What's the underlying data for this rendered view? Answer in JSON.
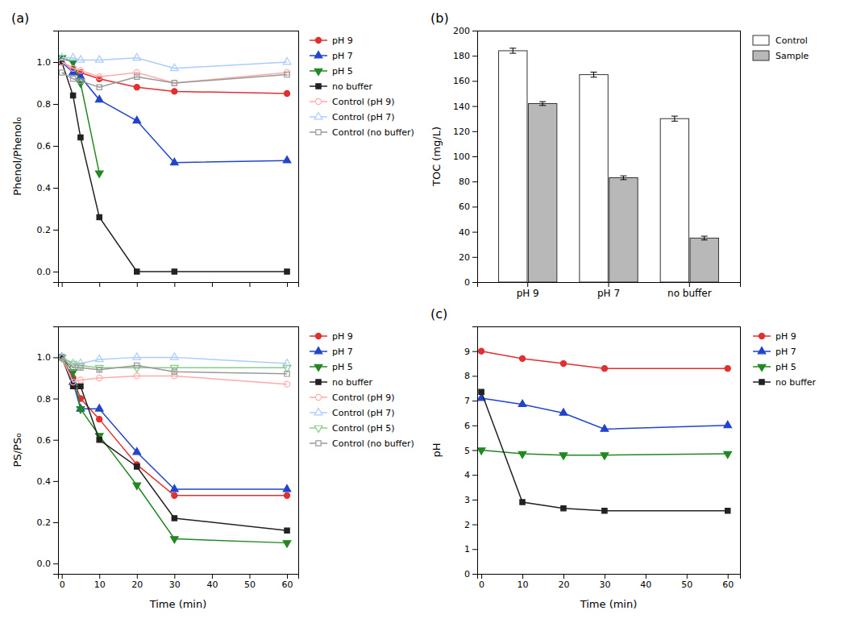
{
  "chart_data": [
    {
      "type": "line",
      "ylabel": "Phenol/Phenol₀",
      "annotations": [
        "(a)"
      ],
      "x": [
        0,
        3,
        5,
        10,
        20,
        30,
        60
      ],
      "xlim": [
        -1,
        63
      ],
      "xticks": [
        0,
        10,
        20,
        30,
        40,
        50,
        60
      ],
      "ylim": [
        -0.05,
        1.15
      ],
      "yticks": [
        {
          "value": 0,
          "label": "0.0"
        },
        0.2,
        0.4,
        0.6,
        0.8,
        {
          "value": 1.0,
          "label": "1.0"
        }
      ],
      "tick_labels": "y",
      "grid": false,
      "legend": "right",
      "series": [
        {
          "name": "pH 9",
          "color": "#e03030",
          "marker": "circle",
          "values": [
            1.0,
            0.97,
            0.95,
            0.92,
            0.88,
            0.86,
            0.85
          ]
        },
        {
          "name": "pH 7",
          "color": "#2244cc",
          "marker": "triangle-up",
          "values": [
            1.0,
            0.95,
            0.93,
            0.82,
            0.72,
            0.52,
            0.53
          ]
        },
        {
          "name": "pH 5",
          "color": "#228822",
          "marker": "triangle-down",
          "values": [
            1.02,
            1.0,
            0.9,
            0.47,
            null,
            null,
            null
          ]
        },
        {
          "name": "no buffer",
          "color": "#222222",
          "marker": "square",
          "values": [
            1.0,
            0.84,
            0.64,
            0.26,
            0.0,
            0.0,
            0.0
          ]
        },
        {
          "name": "Control (pH 9)",
          "color": "#ffaaaa",
          "marker": "circle-open",
          "values": [
            1.0,
            0.97,
            0.96,
            0.93,
            0.95,
            0.9,
            0.95
          ]
        },
        {
          "name": "Control (pH 7)",
          "color": "#aaccff",
          "marker": "triangle-up-open",
          "values": [
            1.02,
            1.02,
            1.01,
            1.01,
            1.02,
            0.97,
            1.0
          ]
        },
        {
          "name": "Control (no buffer)",
          "color": "#999999",
          "marker": "square-open",
          "values": [
            0.95,
            0.92,
            0.91,
            0.88,
            0.93,
            0.9,
            0.94
          ]
        }
      ]
    },
    {
      "type": "line",
      "xlabel": "Time (min)",
      "ylabel": "PS/PS₀",
      "x": [
        0,
        3,
        5,
        10,
        20,
        30,
        60
      ],
      "xlim": [
        -1,
        63
      ],
      "xticks": [
        0,
        10,
        20,
        30,
        40,
        50,
        60
      ],
      "ylim": [
        -0.05,
        1.15
      ],
      "yticks": [
        {
          "value": 0,
          "label": "0.0"
        },
        0.2,
        0.4,
        0.6,
        0.8,
        {
          "value": 1.0,
          "label": "1.0"
        }
      ],
      "grid": false,
      "legend": "right",
      "series": [
        {
          "name": "pH 9",
          "color": "#e03030",
          "marker": "circle",
          "values": [
            1.0,
            0.9,
            0.8,
            0.7,
            0.48,
            0.33,
            0.33
          ]
        },
        {
          "name": "pH 7",
          "color": "#2244cc",
          "marker": "triangle-up",
          "values": [
            1.0,
            0.88,
            0.75,
            0.75,
            0.54,
            0.36,
            0.36
          ]
        },
        {
          "name": "pH 5",
          "color": "#228822",
          "marker": "triangle-down",
          "values": [
            1.0,
            0.93,
            0.75,
            0.62,
            0.38,
            0.12,
            0.1
          ]
        },
        {
          "name": "no buffer",
          "color": "#222222",
          "marker": "square",
          "values": [
            1.0,
            0.86,
            0.86,
            0.6,
            0.47,
            0.22,
            0.16
          ]
        },
        {
          "name": "Control (pH 9)",
          "color": "#ffaaaa",
          "marker": "circle-open",
          "values": [
            1.0,
            0.88,
            0.89,
            0.9,
            0.91,
            0.91,
            0.87
          ]
        },
        {
          "name": "Control (pH 7)",
          "color": "#aaccff",
          "marker": "triangle-up-open",
          "values": [
            1.0,
            0.97,
            0.97,
            0.99,
            1.0,
            1.0,
            0.97
          ]
        },
        {
          "name": "Control (pH 5)",
          "color": "#88cc88",
          "marker": "triangle-down-open",
          "values": [
            1.0,
            0.97,
            0.96,
            0.95,
            0.95,
            0.95,
            0.95
          ]
        },
        {
          "name": "Control (no buffer)",
          "color": "#999999",
          "marker": "square-open",
          "values": [
            1.0,
            0.95,
            0.95,
            0.94,
            0.96,
            0.93,
            0.92
          ]
        }
      ]
    },
    {
      "type": "bar",
      "ylabel": "TOC (mg/L)",
      "annotations": [
        "(b)"
      ],
      "categories": [
        "pH 9",
        "pH 7",
        "no buffer"
      ],
      "ylim": [
        0,
        200
      ],
      "yticks": [
        0,
        20,
        40,
        60,
        80,
        100,
        120,
        140,
        160,
        180,
        200
      ],
      "grid": false,
      "legend": "right",
      "series": [
        {
          "name": "Control",
          "color": "#ffffff",
          "values": [
            184,
            165,
            130
          ],
          "errors": [
            2,
            2,
            2
          ]
        },
        {
          "name": "Sample",
          "color": "#b8b8b8",
          "values": [
            142,
            83,
            35
          ],
          "errors": [
            1.5,
            1.5,
            1.5
          ]
        }
      ]
    },
    {
      "type": "line",
      "xlabel": "Time (min)",
      "ylabel": "pH",
      "annotations": [
        "(c)"
      ],
      "x": [
        0,
        10,
        20,
        30,
        60
      ],
      "xlim": [
        -1,
        63
      ],
      "xticks": [
        0,
        10,
        20,
        30,
        40,
        50,
        60
      ],
      "ylim": [
        0,
        10
      ],
      "yticks": [
        0,
        1,
        2,
        3,
        4,
        5,
        6,
        7,
        8,
        9
      ],
      "grid": false,
      "legend": "right",
      "series": [
        {
          "name": "pH 9",
          "color": "#e03030",
          "marker": "circle",
          "values": [
            9.0,
            8.7,
            8.5,
            8.3,
            8.3
          ]
        },
        {
          "name": "pH 7",
          "color": "#2244cc",
          "marker": "triangle-up",
          "values": [
            7.1,
            6.85,
            6.5,
            5.85,
            6.0
          ]
        },
        {
          "name": "pH 5",
          "color": "#228822",
          "marker": "triangle-down",
          "values": [
            5.0,
            4.85,
            4.8,
            4.8,
            4.85
          ]
        },
        {
          "name": "no buffer",
          "color": "#222222",
          "marker": "square",
          "values": [
            7.35,
            2.9,
            2.65,
            2.55,
            2.55
          ]
        }
      ]
    }
  ]
}
